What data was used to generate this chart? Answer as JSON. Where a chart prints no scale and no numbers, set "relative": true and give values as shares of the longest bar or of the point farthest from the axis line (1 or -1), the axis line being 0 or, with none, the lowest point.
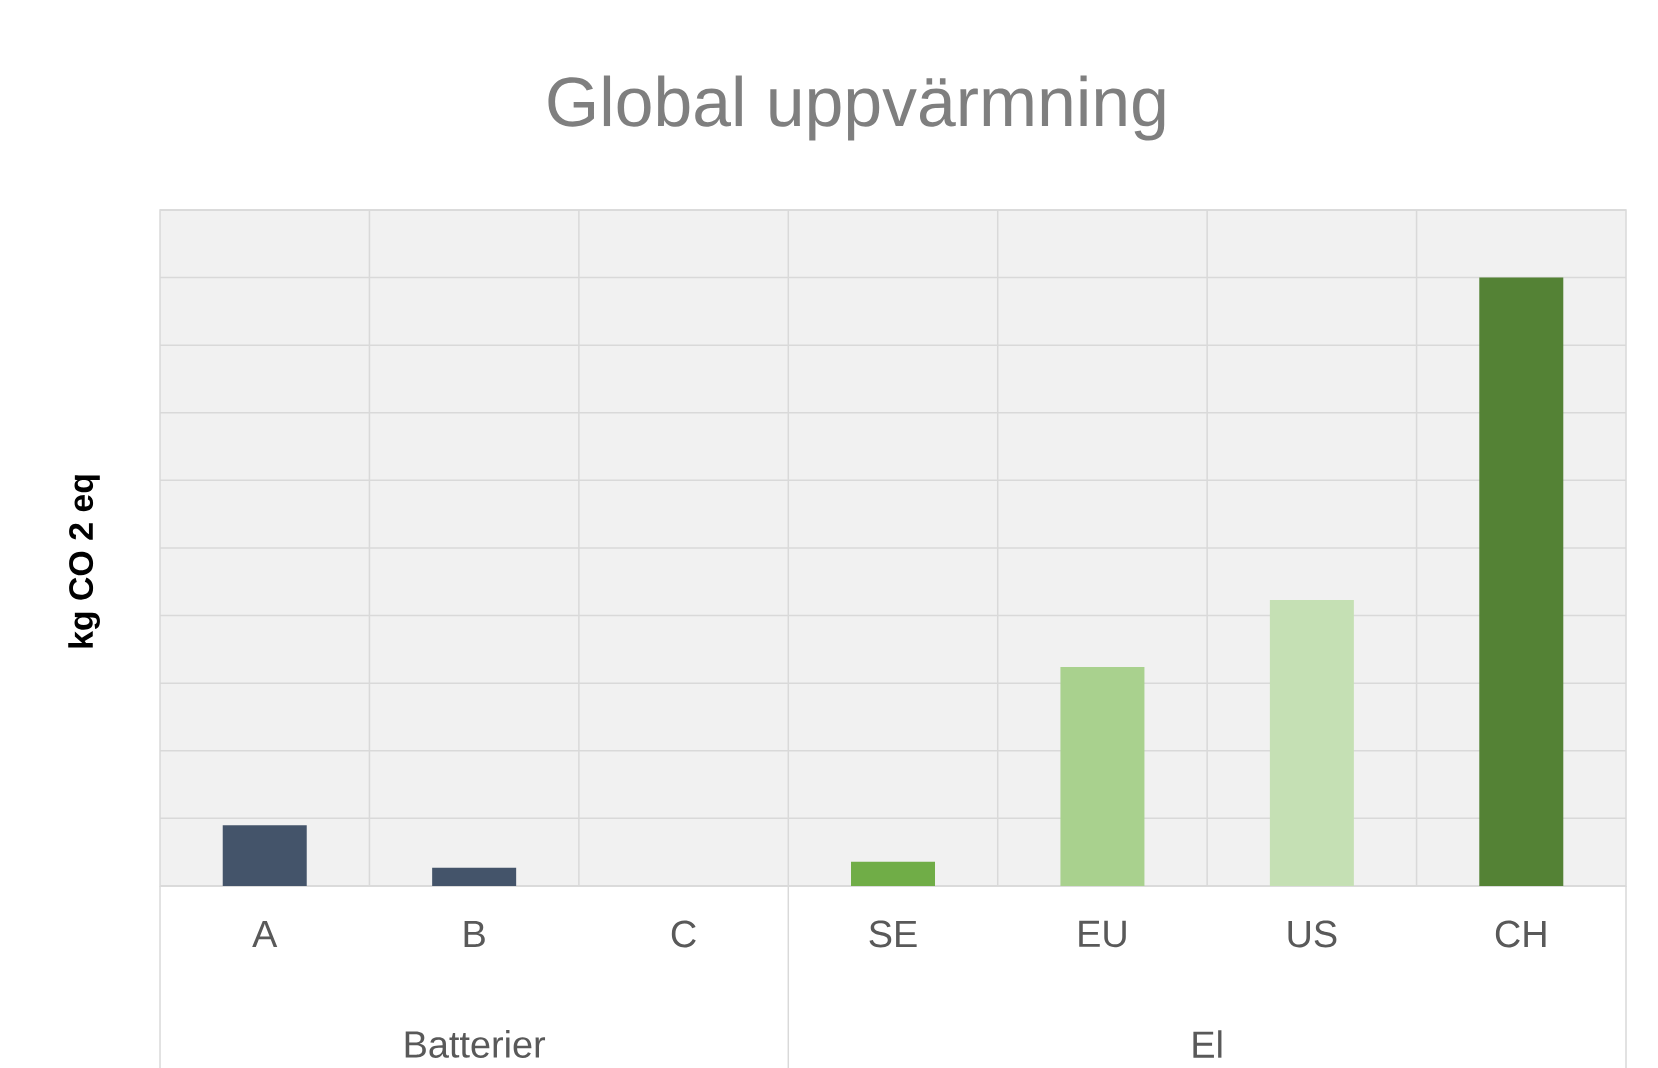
{
  "chart_data": {
    "type": "bar",
    "title": "Global uppvärmning",
    "ylabel": "kg CO 2 eq",
    "categories": [
      "A",
      "B",
      "C",
      "SE",
      "EU",
      "US",
      "CH"
    ],
    "relative": true,
    "grid": true,
    "series": [
      {
        "color": "#44546a",
        "values": [
          0.1,
          0.03,
          0,
          null,
          null,
          null,
          null
        ]
      },
      {
        "colors": [
          null,
          null,
          null,
          "#70ad47",
          "#a9d18e",
          "#c5e0b4",
          "#548235"
        ],
        "values": [
          null,
          null,
          null,
          0.04,
          0.36,
          0.47,
          1
        ]
      }
    ],
    "annotations": [
      "Batterier",
      "El"
    ]
  }
}
